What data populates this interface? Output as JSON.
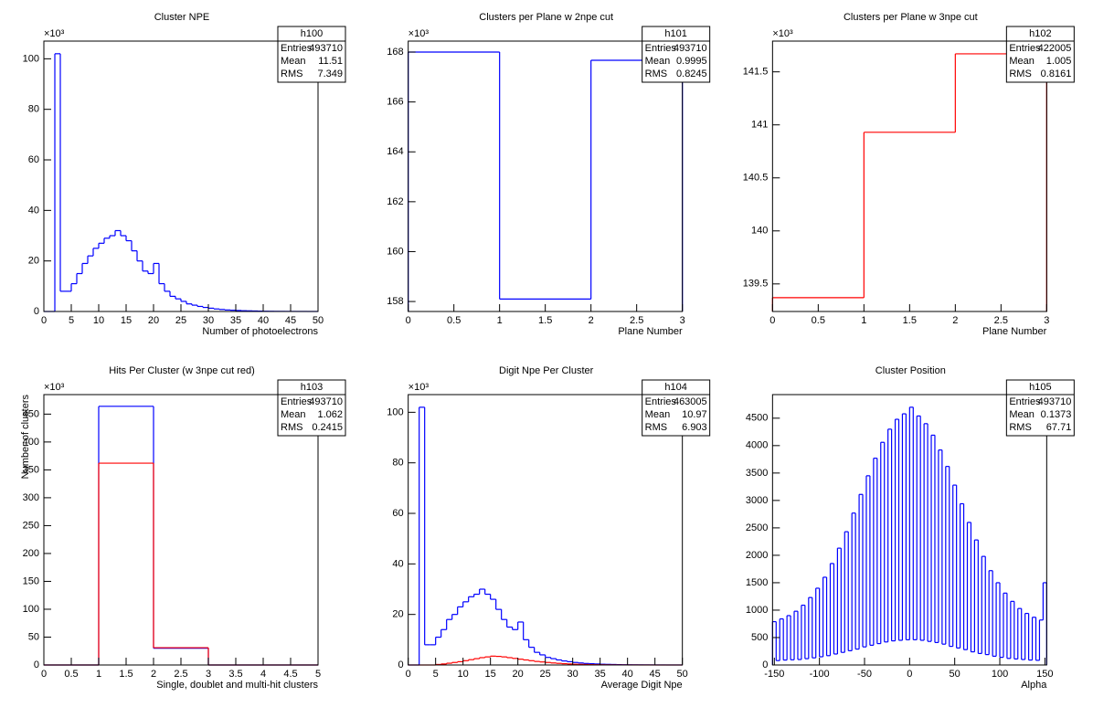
{
  "chart_data": [
    {
      "type": "histogram",
      "title": "Cluster NPE",
      "xlabel": "Number of photoelectrons",
      "y_multiplier_label": "×10³",
      "xlim": [
        0,
        50
      ],
      "ylim": [
        0,
        107
      ],
      "xticks": [
        0,
        5,
        10,
        15,
        20,
        25,
        30,
        35,
        40,
        45,
        50
      ],
      "yticks": [
        0,
        20,
        40,
        60,
        80,
        100
      ],
      "bins": [
        0,
        1,
        2,
        3,
        4,
        5,
        6,
        7,
        8,
        9,
        10,
        11,
        12,
        13,
        14,
        15,
        16,
        17,
        18,
        19,
        20,
        21,
        22,
        23,
        24,
        25,
        26,
        27,
        28,
        29,
        30,
        31,
        32,
        33,
        34,
        35,
        36,
        37,
        38,
        39,
        40,
        41,
        42,
        43,
        44,
        45,
        46,
        47,
        48,
        49,
        50
      ],
      "series": [
        {
          "color": "#0000ff",
          "values": [
            0,
            0,
            102,
            8,
            8,
            11,
            15,
            19,
            22,
            25,
            27,
            29,
            30,
            32,
            30,
            28,
            24,
            20,
            16,
            15,
            19,
            11,
            8,
            6,
            5,
            4,
            3,
            2.5,
            2,
            1.6,
            1.3,
            1,
            0.8,
            0.6,
            0.5,
            0.4,
            0.3,
            0.25,
            0.2,
            0.15,
            0.1,
            0.08,
            0.06,
            0.05,
            0.04,
            0.03,
            0.02,
            0.02,
            0.01,
            0.01
          ]
        }
      ],
      "stats": {
        "name": "h100",
        "rows": [
          {
            "label": "Entries",
            "value": 493710
          },
          {
            "label": "Mean",
            "value": 11.51
          },
          {
            "label": "RMS",
            "value": 7.349
          }
        ]
      }
    },
    {
      "type": "histogram",
      "title": "Clusters per Plane w 2npe cut",
      "xlabel": "Plane Number",
      "y_multiplier_label": "×10³",
      "xlim": [
        0,
        3
      ],
      "ylim": [
        157.6,
        168.44
      ],
      "xticks": [
        0,
        0.5,
        1,
        1.5,
        2,
        2.5,
        3
      ],
      "yticks": [
        158,
        160,
        162,
        164,
        166,
        168
      ],
      "bins": [
        0,
        1,
        2,
        3
      ],
      "series": [
        {
          "color": "#0000ff",
          "values": [
            168,
            158.1,
            167.67
          ]
        }
      ],
      "stats": {
        "name": "h101",
        "rows": [
          {
            "label": "Entries",
            "value": 493710
          },
          {
            "label": "Mean",
            "value": 0.9995
          },
          {
            "label": "RMS",
            "value": 0.8245
          }
        ]
      }
    },
    {
      "type": "histogram",
      "title": "Clusters per Plane w 3npe cut",
      "xlabel": "Plane Number",
      "y_multiplier_label": "×10³",
      "xlim": [
        0,
        3
      ],
      "ylim": [
        139.24,
        141.79
      ],
      "xticks": [
        0,
        0.5,
        1,
        1.5,
        2,
        2.5,
        3
      ],
      "yticks": [
        139.5,
        140,
        140.5,
        141,
        141.5
      ],
      "bins": [
        0,
        1,
        2,
        3
      ],
      "series": [
        {
          "color": "#ff0000",
          "values": [
            139.37,
            140.93,
            141.67
          ]
        }
      ],
      "stats": {
        "name": "h102",
        "rows": [
          {
            "label": "Entries",
            "value": 422005
          },
          {
            "label": "Mean",
            "value": 1.005
          },
          {
            "label": "RMS",
            "value": 0.8161
          }
        ]
      }
    },
    {
      "type": "histogram",
      "title": "Hits Per Cluster (w 3npe cut red)",
      "xlabel": "Single, doublet and multi-hit clusters",
      "ylabel": "Number of clusters",
      "y_multiplier_label": "×10³",
      "xlim": [
        0,
        5
      ],
      "ylim": [
        0,
        485
      ],
      "xticks": [
        0,
        0.5,
        1,
        1.5,
        2,
        2.5,
        3,
        3.5,
        4,
        4.5,
        5
      ],
      "yticks": [
        0,
        50,
        100,
        150,
        200,
        250,
        300,
        350,
        400,
        450
      ],
      "bins": [
        0,
        1,
        2,
        3,
        4,
        5
      ],
      "series": [
        {
          "color": "#0000ff",
          "values": [
            0,
            464,
            30,
            0,
            0
          ]
        },
        {
          "color": "#ff0000",
          "values": [
            0,
            362,
            31,
            0,
            0
          ]
        }
      ],
      "stats": {
        "name": "h103",
        "rows": [
          {
            "label": "Entries",
            "value": 493710
          },
          {
            "label": "Mean",
            "value": 1.062
          },
          {
            "label": "RMS",
            "value": 0.2415
          }
        ]
      }
    },
    {
      "type": "histogram",
      "title": "Digit Npe Per Cluster",
      "xlabel": "Average Digit Npe",
      "y_multiplier_label": "×10³",
      "xlim": [
        0,
        50
      ],
      "ylim": [
        0,
        107
      ],
      "xticks": [
        0,
        5,
        10,
        15,
        20,
        25,
        30,
        35,
        40,
        45,
        50
      ],
      "yticks": [
        0,
        20,
        40,
        60,
        80,
        100
      ],
      "bins": [
        0,
        1,
        2,
        3,
        4,
        5,
        6,
        7,
        8,
        9,
        10,
        11,
        12,
        13,
        14,
        15,
        16,
        17,
        18,
        19,
        20,
        21,
        22,
        23,
        24,
        25,
        26,
        27,
        28,
        29,
        30,
        31,
        32,
        33,
        34,
        35,
        36,
        37,
        38,
        39,
        40,
        41,
        42,
        43,
        44,
        45,
        46,
        47,
        48,
        49,
        50
      ],
      "series": [
        {
          "color": "#0000ff",
          "values": [
            0,
            0,
            102,
            8,
            8,
            11,
            14,
            18,
            20,
            23,
            25,
            27,
            28,
            30,
            28,
            26,
            22,
            18,
            15,
            14,
            17,
            10,
            7,
            5,
            4,
            3,
            2.5,
            2,
            1.6,
            1.3,
            1,
            0.8,
            0.6,
            0.5,
            0.4,
            0.3,
            0.25,
            0.2,
            0.15,
            0.1,
            0.08,
            0.06,
            0.05,
            0.04,
            0.03,
            0.02,
            0.02,
            0.01,
            0.01,
            0.01
          ]
        },
        {
          "color": "#ff0000",
          "values": [
            0,
            0,
            0,
            0,
            0,
            0.2,
            0.4,
            0.7,
            1,
            1.3,
            1.7,
            2.1,
            2.5,
            2.9,
            3.2,
            3.5,
            3.4,
            3.2,
            2.9,
            2.6,
            2.3,
            2,
            1.7,
            1.4,
            1.2,
            1,
            0.8,
            0.65,
            0.5,
            0.4,
            0.3,
            0.25,
            0.2,
            0.15,
            0.1,
            0.08,
            0.06,
            0.05,
            0.04,
            0.03,
            0.02,
            0.02,
            0.01,
            0.01,
            0.01,
            0,
            0,
            0,
            0,
            0
          ]
        }
      ],
      "stats": {
        "name": "h104",
        "rows": [
          {
            "label": "Entries",
            "value": 463005
          },
          {
            "label": "Mean",
            "value": 10.97
          },
          {
            "label": "RMS",
            "value": 6.903
          }
        ]
      }
    },
    {
      "type": "histogram",
      "title": "Cluster Position",
      "xlabel": "Alpha",
      "xlim": [
        -152,
        152
      ],
      "ylim": [
        0,
        4930
      ],
      "xticks": [
        -150,
        -100,
        -50,
        0,
        50,
        100,
        150
      ],
      "yticks": [
        0,
        500,
        1000,
        1500,
        2000,
        2500,
        3000,
        3500,
        4000,
        4500
      ],
      "bins": [
        -152,
        -148,
        -144,
        -140,
        -136,
        -132,
        -128,
        -124,
        -120,
        -116,
        -112,
        -108,
        -104,
        -100,
        -96,
        -92,
        -88,
        -84,
        -80,
        -76,
        -72,
        -68,
        -64,
        -60,
        -56,
        -52,
        -48,
        -44,
        -40,
        -36,
        -32,
        -28,
        -24,
        -20,
        -16,
        -12,
        -8,
        -4,
        0,
        4,
        8,
        12,
        16,
        20,
        24,
        28,
        32,
        36,
        40,
        44,
        48,
        52,
        56,
        60,
        64,
        68,
        72,
        76,
        80,
        84,
        88,
        92,
        96,
        100,
        104,
        108,
        112,
        116,
        120,
        124,
        128,
        132,
        136,
        140,
        144,
        148,
        152
      ],
      "series": [
        {
          "color": "#0000ff",
          "values": [
            790,
            80,
            840,
            90,
            900,
            95,
            980,
            100,
            1090,
            115,
            1230,
            130,
            1400,
            150,
            1600,
            170,
            1850,
            200,
            2130,
            230,
            2430,
            260,
            2770,
            290,
            3110,
            330,
            3450,
            360,
            3770,
            390,
            4060,
            420,
            4300,
            440,
            4480,
            450,
            4580,
            460,
            4700,
            460,
            4540,
            450,
            4400,
            430,
            4190,
            410,
            3920,
            380,
            3620,
            340,
            3280,
            310,
            2940,
            280,
            2600,
            240,
            2280,
            210,
            1980,
            190,
            1720,
            160,
            1500,
            140,
            1310,
            120,
            1160,
            110,
            1030,
            100,
            940,
            90,
            870,
            85,
            820,
            1500
          ]
        }
      ],
      "stats": {
        "name": "h105",
        "rows": [
          {
            "label": "Entries",
            "value": 493710
          },
          {
            "label": "Mean",
            "value": 0.1373
          },
          {
            "label": "RMS",
            "value": 67.71
          }
        ]
      }
    }
  ]
}
